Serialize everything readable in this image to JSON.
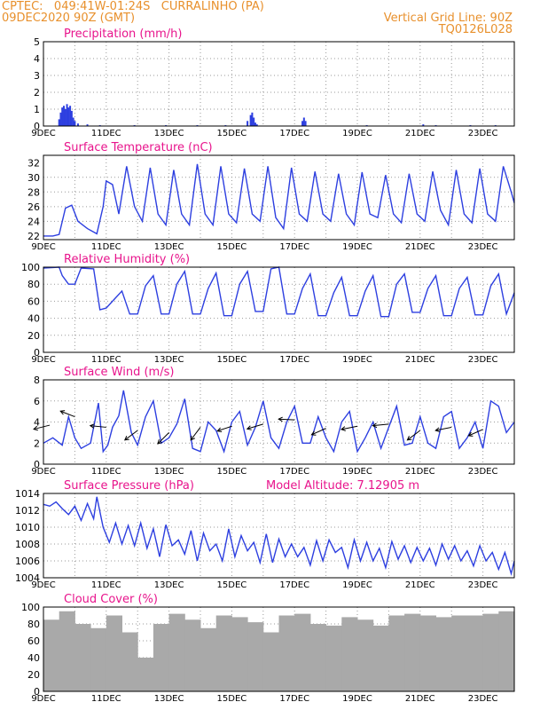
{
  "header": {
    "line1": "CPTEC:   049:41W-01:24S   CURRALINHO (PA)",
    "line2": "09DEC2020 90Z (GMT)",
    "right1": "Vertical Grid Line: 90Z",
    "right2": "TQ0126L028"
  },
  "colors": {
    "header": "#e8902c",
    "title": "#e8148c",
    "series": "#2d3fe0",
    "fill": "#a9a9a9",
    "arrow": "#000000",
    "grid": "#9a9a9a"
  },
  "x_ticks": [
    "9DEC",
    "11DEC",
    "13DEC",
    "15DEC",
    "17DEC",
    "19DEC",
    "21DEC",
    "23DEC"
  ],
  "panel_titles": [
    "Precipitation (mm/h)",
    "Surface Temperature (nC)",
    "Relative Humidity (%)",
    "Surface Wind (m/s)",
    "Surface Pressure (hPa)",
    "Cloud Cover (%)"
  ],
  "pressure_extra": "Model Altitude: 7.12905 m",
  "chart_data": [
    {
      "type": "bar",
      "title": "Precipitation (mm/h)",
      "ylim": [
        0,
        5
      ],
      "yticks": [
        "0",
        "1",
        "2",
        "3",
        "4",
        "5"
      ],
      "grid": true,
      "x_day": [
        0.5,
        0.55,
        0.6,
        0.65,
        0.7,
        0.75,
        0.8,
        0.85,
        0.9,
        0.95,
        1.0,
        1.1,
        1.4,
        1.8,
        2.9,
        3.9,
        4.9,
        5.8,
        6.5,
        6.6,
        6.65,
        6.7,
        6.75,
        6.8,
        8.25,
        8.3,
        8.35,
        10.3,
        12.1,
        12.5,
        13.6,
        14.4
      ],
      "values": [
        0.4,
        0.8,
        1.1,
        1.2,
        1.0,
        1.3,
        1.1,
        1.2,
        0.9,
        0.5,
        0.3,
        0.15,
        0.1,
        0.05,
        0.05,
        0.05,
        0.05,
        0.05,
        0.3,
        0.65,
        0.8,
        0.5,
        0.2,
        0.1,
        0.3,
        0.5,
        0.3,
        0.05,
        0.1,
        0.05,
        0.05,
        0.05
      ]
    },
    {
      "type": "line",
      "title": "Surface Temperature (nC)",
      "ylim": [
        21.5,
        33
      ],
      "yticks": [
        "22",
        "24",
        "26",
        "28",
        "30",
        "32"
      ],
      "grid": true,
      "x_day": [
        0,
        0.3,
        0.5,
        0.7,
        0.9,
        1.1,
        1.4,
        1.7,
        1.9,
        2.0,
        2.2,
        2.4,
        2.65,
        2.9,
        3.15,
        3.4,
        3.65,
        3.9,
        4.15,
        4.4,
        4.65,
        4.9,
        5.15,
        5.4,
        5.65,
        5.9,
        6.15,
        6.4,
        6.65,
        6.9,
        7.15,
        7.4,
        7.65,
        7.9,
        8.15,
        8.4,
        8.65,
        8.9,
        9.15,
        9.4,
        9.65,
        9.9,
        10.15,
        10.4,
        10.65,
        10.9,
        11.15,
        11.4,
        11.65,
        11.9,
        12.15,
        12.4,
        12.65,
        12.9,
        13.15,
        13.4,
        13.65,
        13.9,
        14.15,
        14.4,
        14.65,
        14.9,
        15.0
      ],
      "values": [
        22.0,
        22.0,
        22.2,
        25.8,
        26.2,
        24.0,
        23.0,
        22.3,
        26.0,
        29.5,
        29.0,
        25.0,
        31.5,
        26.0,
        24.0,
        31.3,
        25.0,
        23.5,
        31.0,
        25.0,
        23.5,
        31.8,
        25.0,
        23.5,
        31.5,
        25.0,
        23.8,
        31.2,
        25.0,
        24.0,
        31.5,
        24.5,
        23.0,
        31.3,
        25.0,
        24.0,
        30.8,
        25.0,
        24.0,
        30.5,
        25.0,
        23.5,
        30.7,
        25.0,
        24.5,
        30.3,
        25.0,
        23.8,
        30.5,
        25.0,
        24.0,
        30.8,
        25.5,
        23.5,
        31.0,
        25.0,
        23.8,
        31.2,
        25.0,
        24.0,
        31.5,
        28.0,
        26.5
      ]
    },
    {
      "type": "line",
      "title": "Relative Humidity (%)",
      "ylim": [
        0,
        100
      ],
      "yticks": [
        "0",
        "20",
        "40",
        "60",
        "80",
        "100"
      ],
      "grid": true,
      "x_day": [
        0,
        0.5,
        0.6,
        0.8,
        1.0,
        1.2,
        1.6,
        1.8,
        2.0,
        2.25,
        2.5,
        2.75,
        3.0,
        3.25,
        3.5,
        3.75,
        4.0,
        4.25,
        4.5,
        4.75,
        5.0,
        5.25,
        5.5,
        5.75,
        6.0,
        6.25,
        6.5,
        6.75,
        7.0,
        7.25,
        7.5,
        7.75,
        8.0,
        8.25,
        8.5,
        8.75,
        9.0,
        9.25,
        9.5,
        9.75,
        10.0,
        10.25,
        10.5,
        10.75,
        11.0,
        11.25,
        11.5,
        11.75,
        12.0,
        12.25,
        12.5,
        12.75,
        13.0,
        13.25,
        13.5,
        13.75,
        14.0,
        14.25,
        14.5,
        14.75,
        15.0
      ],
      "values": [
        99,
        100,
        90,
        80,
        80,
        99,
        98,
        50,
        52,
        62,
        72,
        45,
        45,
        78,
        90,
        45,
        45,
        80,
        95,
        45,
        45,
        75,
        93,
        43,
        43,
        80,
        95,
        48,
        48,
        98,
        100,
        45,
        45,
        75,
        92,
        43,
        43,
        70,
        88,
        43,
        43,
        72,
        90,
        42,
        42,
        80,
        92,
        47,
        47,
        75,
        90,
        43,
        43,
        75,
        88,
        44,
        44,
        78,
        92,
        45,
        70
      ]
    },
    {
      "type": "line",
      "title": "Surface Wind (m/s)",
      "ylim": [
        0,
        8
      ],
      "yticks": [
        "0",
        "2",
        "4",
        "6",
        "8"
      ],
      "grid": true,
      "x_day": [
        0,
        0.3,
        0.6,
        0.8,
        1.0,
        1.2,
        1.5,
        1.75,
        1.9,
        2.05,
        2.2,
        2.4,
        2.55,
        2.8,
        3.0,
        3.25,
        3.5,
        3.75,
        4.0,
        4.25,
        4.5,
        4.75,
        5.0,
        5.25,
        5.5,
        5.75,
        6.0,
        6.25,
        6.5,
        6.75,
        7.0,
        7.25,
        7.5,
        7.75,
        8.0,
        8.25,
        8.5,
        8.75,
        9.0,
        9.25,
        9.5,
        9.75,
        10.0,
        10.25,
        10.5,
        10.75,
        11.0,
        11.25,
        11.5,
        11.75,
        12.0,
        12.25,
        12.5,
        12.75,
        13.0,
        13.25,
        13.5,
        13.75,
        14.0,
        14.25,
        14.5,
        14.75,
        15.0
      ],
      "values": [
        2.0,
        2.5,
        1.8,
        4.5,
        2.5,
        1.5,
        2.0,
        5.8,
        1.2,
        1.8,
        3.5,
        4.6,
        7.0,
        3.0,
        1.8,
        4.5,
        6.0,
        2.0,
        2.5,
        3.8,
        6.2,
        1.5,
        1.2,
        4.0,
        3.2,
        1.2,
        4.0,
        5.0,
        1.8,
        3.5,
        6.0,
        2.5,
        1.5,
        4.0,
        5.5,
        2.0,
        2.0,
        4.5,
        2.5,
        1.2,
        4.0,
        5.0,
        1.2,
        2.5,
        4.0,
        1.5,
        3.5,
        5.5,
        1.8,
        2.0,
        4.5,
        2.0,
        1.5,
        4.5,
        5.0,
        1.5,
        2.5,
        4.0,
        1.5,
        6.0,
        5.5,
        3.0,
        4.0
      ],
      "arrows": [
        {
          "x_day": 0.2,
          "speed": 3.7,
          "dx": -1.0,
          "dy": -0.25
        },
        {
          "x_day": 1.0,
          "speed": 4.5,
          "dx": -0.9,
          "dy": 0.35
        },
        {
          "x_day": 2.0,
          "speed": 3.5,
          "dx": -1.0,
          "dy": 0.1
        },
        {
          "x_day": 3.0,
          "speed": 3.2,
          "dx": -0.8,
          "dy": -0.6
        },
        {
          "x_day": 4.0,
          "speed": 3.0,
          "dx": -0.7,
          "dy": -0.7
        },
        {
          "x_day": 5.0,
          "speed": 3.5,
          "dx": -0.6,
          "dy": -0.8
        },
        {
          "x_day": 6.0,
          "speed": 3.6,
          "dx": -0.9,
          "dy": -0.3
        },
        {
          "x_day": 7.0,
          "speed": 3.8,
          "dx": -1.0,
          "dy": -0.3
        },
        {
          "x_day": 8.0,
          "speed": 4.2,
          "dx": -1.0,
          "dy": 0.05
        },
        {
          "x_day": 9.0,
          "speed": 3.4,
          "dx": -0.9,
          "dy": -0.4
        },
        {
          "x_day": 10.0,
          "speed": 3.6,
          "dx": -1.0,
          "dy": -0.2
        },
        {
          "x_day": 11.0,
          "speed": 3.8,
          "dx": -1.0,
          "dy": -0.1
        },
        {
          "x_day": 12.0,
          "speed": 3.2,
          "dx": -0.8,
          "dy": -0.6
        },
        {
          "x_day": 13.0,
          "speed": 3.5,
          "dx": -1.0,
          "dy": -0.2
        },
        {
          "x_day": 14.0,
          "speed": 3.3,
          "dx": -0.9,
          "dy": -0.4
        }
      ]
    },
    {
      "type": "line",
      "title": "Surface Pressure (hPa)",
      "ylim": [
        1004,
        1014
      ],
      "yticks": [
        "1004",
        "1006",
        "1008",
        "1010",
        "1012",
        "1014"
      ],
      "grid": true,
      "x_day": [
        0,
        0.2,
        0.4,
        0.6,
        0.8,
        1.0,
        1.2,
        1.4,
        1.6,
        1.7,
        1.9,
        2.1,
        2.3,
        2.5,
        2.7,
        2.9,
        3.1,
        3.3,
        3.5,
        3.7,
        3.9,
        4.1,
        4.3,
        4.5,
        4.7,
        4.9,
        5.1,
        5.3,
        5.5,
        5.7,
        5.9,
        6.1,
        6.3,
        6.5,
        6.7,
        6.9,
        7.1,
        7.3,
        7.5,
        7.7,
        7.9,
        8.1,
        8.3,
        8.5,
        8.7,
        8.9,
        9.1,
        9.3,
        9.5,
        9.7,
        9.9,
        10.1,
        10.3,
        10.5,
        10.7,
        10.9,
        11.1,
        11.3,
        11.5,
        11.7,
        11.9,
        12.1,
        12.3,
        12.5,
        12.7,
        12.9,
        13.1,
        13.3,
        13.5,
        13.7,
        13.9,
        14.1,
        14.3,
        14.5,
        14.7,
        14.9,
        15.0
      ],
      "values": [
        1012.7,
        1012.5,
        1013.0,
        1012.2,
        1011.5,
        1012.5,
        1010.8,
        1012.8,
        1011.0,
        1013.6,
        1010.0,
        1008.2,
        1010.5,
        1008.0,
        1010.2,
        1007.8,
        1010.5,
        1007.5,
        1009.8,
        1006.5,
        1010.3,
        1007.8,
        1008.5,
        1006.8,
        1009.6,
        1006.0,
        1009.3,
        1007.2,
        1008.0,
        1006.0,
        1009.8,
        1006.5,
        1009.0,
        1007.2,
        1008.2,
        1005.8,
        1009.2,
        1005.8,
        1008.6,
        1006.5,
        1008.0,
        1006.5,
        1007.6,
        1005.5,
        1008.4,
        1006.0,
        1008.5,
        1007.0,
        1007.6,
        1005.2,
        1008.5,
        1006.0,
        1008.2,
        1006.0,
        1007.5,
        1005.2,
        1008.3,
        1006.2,
        1007.8,
        1005.8,
        1007.6,
        1006.0,
        1007.5,
        1005.5,
        1008.0,
        1006.2,
        1007.8,
        1006.0,
        1007.2,
        1005.4,
        1007.8,
        1006.0,
        1007.0,
        1005.0,
        1007.0,
        1004.5,
        1006.0
      ]
    },
    {
      "type": "bar",
      "title": "Cloud Cover (%)",
      "ylim": [
        0,
        100
      ],
      "yticks": [
        "0",
        "20",
        "40",
        "60",
        "80",
        "100"
      ],
      "grid": true,
      "x_day": [
        0,
        0.5,
        1,
        1.5,
        2,
        2.5,
        3,
        3.5,
        4,
        4.5,
        5,
        5.5,
        6,
        6.5,
        7,
        7.5,
        8,
        8.5,
        9,
        9.5,
        10,
        10.5,
        11,
        11.5,
        12,
        12.5,
        13,
        13.5,
        14,
        14.5
      ],
      "values": [
        85,
        95,
        80,
        75,
        90,
        70,
        40,
        80,
        92,
        85,
        75,
        90,
        88,
        82,
        70,
        90,
        92,
        80,
        78,
        88,
        85,
        78,
        90,
        92,
        90,
        88,
        90,
        90,
        92,
        95
      ]
    }
  ]
}
